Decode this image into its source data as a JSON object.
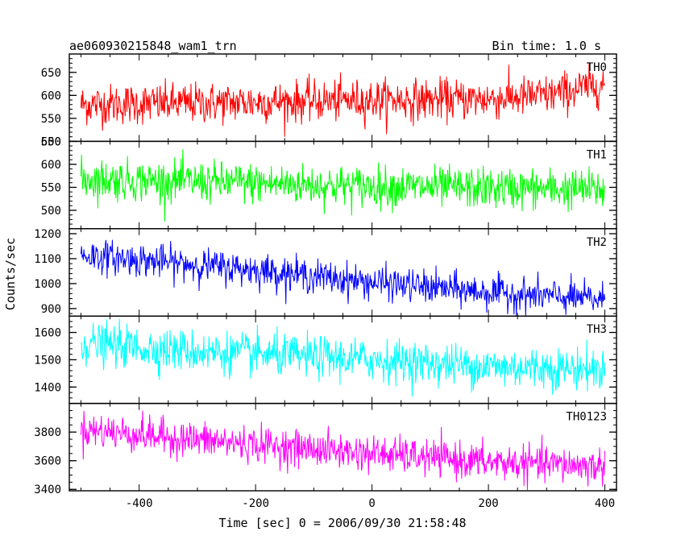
{
  "chart_data": {
    "type": "line",
    "title": "ae060930215848_wam1_trn",
    "subtitle": "Bin time: 1.0 s",
    "xlabel": "Time [sec] 0 = 2006/09/30 21:58:48",
    "ylabel": "Counts/sec",
    "xlim": [
      -520,
      420
    ],
    "x_range": [
      -500,
      400
    ],
    "x_ticks": [
      -400,
      -200,
      0,
      200,
      400
    ],
    "x_minor_step": 50,
    "grid": false,
    "panels": [
      {
        "name": "TH0",
        "color": "#ff0000",
        "ylim": [
          500,
          690
        ],
        "y_ticks": [
          500,
          550,
          600,
          650
        ],
        "y_minor_step": 10,
        "trend": [
          [
            -500,
            580
          ],
          [
            -300,
            583
          ],
          [
            0,
            590
          ],
          [
            200,
            592
          ],
          [
            300,
            600
          ],
          [
            400,
            625
          ]
        ],
        "noise_sd": 22
      },
      {
        "name": "TH1",
        "color": "#00ff00",
        "ylim": [
          460,
          650
        ],
        "y_ticks": [
          500,
          550,
          600,
          650
        ],
        "y_minor_step": 10,
        "trend": [
          [
            -500,
            568
          ],
          [
            -300,
            562
          ],
          [
            0,
            552
          ],
          [
            200,
            548
          ],
          [
            400,
            545
          ]
        ],
        "noise_sd": 22
      },
      {
        "name": "TH2",
        "color": "#0000ff",
        "ylim": [
          870,
          1220
        ],
        "y_ticks": [
          900,
          1000,
          1100,
          1200
        ],
        "y_minor_step": 20,
        "trend": [
          [
            -500,
            1115
          ],
          [
            -400,
            1095
          ],
          [
            -200,
            1055
          ],
          [
            0,
            1005
          ],
          [
            200,
            965
          ],
          [
            400,
            935
          ]
        ],
        "noise_sd": 33
      },
      {
        "name": "TH3",
        "color": "#00ffff",
        "ylim": [
          1340,
          1660
        ],
        "y_ticks": [
          1400,
          1500,
          1600
        ],
        "y_minor_step": 20,
        "trend": [
          [
            -500,
            1560
          ],
          [
            -300,
            1530
          ],
          [
            0,
            1500
          ],
          [
            200,
            1475
          ],
          [
            400,
            1465
          ]
        ],
        "noise_sd": 38
      },
      {
        "name": "TH0123",
        "color": "#ff00ff",
        "ylim": [
          3390,
          4000
        ],
        "y_ticks": [
          3400,
          3600,
          3800
        ],
        "y_minor_step": 50,
        "trend": [
          [
            -500,
            3820
          ],
          [
            -300,
            3745
          ],
          [
            0,
            3650
          ],
          [
            200,
            3590
          ],
          [
            400,
            3560
          ]
        ],
        "noise_sd": 62
      }
    ]
  }
}
